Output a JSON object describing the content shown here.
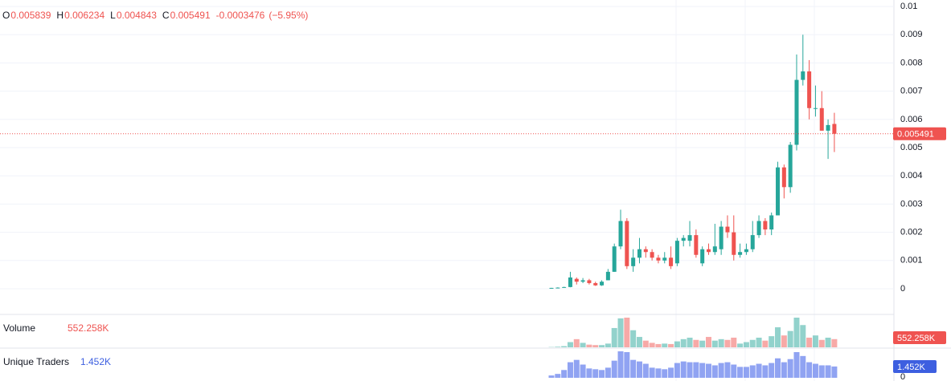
{
  "chart_data": {
    "type": "candlestick",
    "up_color": "#26a69a",
    "down_color": "#ef5350",
    "open": [
      2e-05,
      3e-05,
      4e-05,
      6e-05,
      0.00035,
      0.00025,
      0.0003,
      0.0002,
      0.00012,
      0.0003,
      0.0006,
      0.0015,
      0.0024,
      0.0008,
      0.0011,
      0.0014,
      0.0013,
      0.0011,
      0.001,
      0.0011,
      0.0009,
      0.0017,
      0.0017,
      0.0019,
      0.0009,
      0.0014,
      0.0013,
      0.0014,
      0.0022,
      0.002,
      0.0012,
      0.0013,
      0.0014,
      0.0019,
      0.0024,
      0.0021,
      0.0026,
      0.0043,
      0.0036,
      0.0051,
      0.0074,
      0.0077,
      0.0064,
      0.0064,
      0.0056,
      0.005839
    ],
    "high": [
      3e-05,
      5e-05,
      7e-05,
      0.0006,
      0.0004,
      0.00038,
      0.00035,
      0.00025,
      0.0003,
      0.0007,
      0.0016,
      0.0028,
      0.0025,
      0.0014,
      0.0018,
      0.0015,
      0.0014,
      0.0012,
      0.0013,
      0.0015,
      0.0018,
      0.0019,
      0.0024,
      0.0021,
      0.0015,
      0.0016,
      0.0023,
      0.0024,
      0.0026,
      0.0026,
      0.0016,
      0.0016,
      0.0024,
      0.0026,
      0.0025,
      0.0027,
      0.0045,
      0.0044,
      0.0052,
      0.0083,
      0.009,
      0.0081,
      0.0072,
      0.007,
      0.006,
      0.006234
    ],
    "low": [
      1e-05,
      2e-05,
      3e-05,
      5e-05,
      0.00015,
      0.0002,
      0.00015,
      0.0001,
      0.0001,
      0.0003,
      0.0006,
      0.0014,
      0.0007,
      0.0006,
      0.0009,
      0.0011,
      0.001,
      0.0009,
      0.0009,
      0.0007,
      0.0008,
      0.0015,
      0.0015,
      0.0011,
      0.0008,
      0.0012,
      0.0012,
      0.0012,
      0.0018,
      0.001,
      0.0011,
      0.0012,
      0.0013,
      0.0018,
      0.0019,
      0.0019,
      0.0026,
      0.0032,
      0.0034,
      0.0049,
      0.0072,
      0.006,
      0.0061,
      0.0056,
      0.0046,
      0.004843
    ],
    "close": [
      3e-05,
      4e-05,
      6e-05,
      0.0004,
      0.00025,
      0.0003,
      0.0002,
      0.00012,
      0.00025,
      0.0006,
      0.0015,
      0.0024,
      0.0008,
      0.0011,
      0.0014,
      0.0013,
      0.0011,
      0.001,
      0.0011,
      0.0008,
      0.0017,
      0.0018,
      0.0019,
      0.0012,
      0.0014,
      0.0013,
      0.0015,
      0.0022,
      0.002,
      0.0012,
      0.0013,
      0.0014,
      0.0019,
      0.0024,
      0.0021,
      0.0026,
      0.0043,
      0.0036,
      0.0051,
      0.0074,
      0.0077,
      0.0064,
      0.0064,
      0.0056,
      0.0058,
      0.005491
    ],
    "ylim": [
      -0.00091,
      0.01023
    ],
    "yticks": [
      0,
      0.001,
      0.002,
      0.003,
      0.004,
      0.005,
      0.006,
      0.007,
      0.008,
      0.009,
      0.01
    ],
    "grid": true,
    "legend": {
      "open_label": "O",
      "high_label": "H",
      "low_label": "L",
      "close_label": "C",
      "change": -0.0003476,
      "change_label": "(−5.95%)"
    },
    "volume": {
      "title": "Volume",
      "values": [
        20000,
        40000,
        80000,
        350000,
        550000,
        300000,
        180000,
        150000,
        150000,
        250000,
        1300000,
        1950000,
        2000000,
        1150000,
        700000,
        450000,
        300000,
        220000,
        250000,
        220000,
        400000,
        550000,
        650000,
        500000,
        450000,
        700000,
        450000,
        550000,
        500000,
        650000,
        250000,
        350000,
        500000,
        650000,
        450000,
        750000,
        1350000,
        800000,
        1100000,
        2000000,
        1500000,
        650000,
        800000,
        500000,
        650000,
        552258
      ],
      "last_value_label": "552.258K"
    },
    "traders": {
      "title": "Unique Traders",
      "color": "#6b84ee",
      "badge_color": "#3d5fe0",
      "values": [
        300,
        500,
        1000,
        2000,
        2300,
        1700,
        1200,
        1100,
        1000,
        1300,
        2200,
        3400,
        3300,
        2300,
        2100,
        1800,
        1300,
        1200,
        1100,
        1300,
        1900,
        2100,
        2000,
        2000,
        1900,
        1800,
        1600,
        1900,
        2000,
        1700,
        1400,
        1400,
        1600,
        1800,
        1600,
        1900,
        2500,
        2000,
        2400,
        3300,
        2800,
        2000,
        1800,
        1600,
        1600,
        1452
      ],
      "last_value_label": "1.452K",
      "yticks": [
        0
      ]
    }
  }
}
